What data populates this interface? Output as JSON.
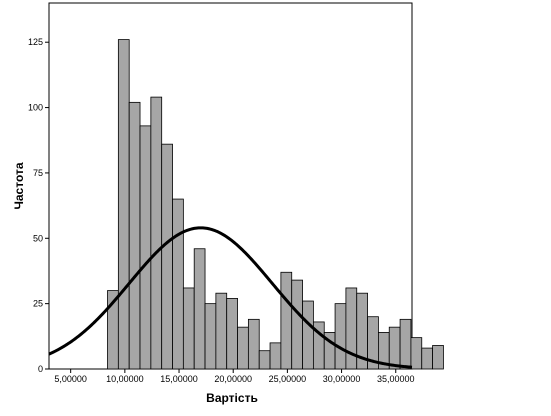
{
  "chart_data": {
    "type": "bar",
    "subtype": "histogram_with_normal_curve",
    "xlabel": "Вартість",
    "ylabel": "Частота",
    "xlim": [
      3000,
      36500
    ],
    "ylim": [
      0,
      140
    ],
    "x_ticks": [
      5000,
      10000,
      15000,
      20000,
      25000,
      30000,
      35000
    ],
    "x_tick_labels": [
      "5,00000",
      "10,00000",
      "15,00000",
      "20,00000",
      "25,00000",
      "30,00000",
      "35,00000"
    ],
    "y_ticks": [
      0,
      25,
      50,
      75,
      100,
      125
    ],
    "y_tick_labels": [
      "0",
      "25",
      "50",
      "75",
      "100",
      "125"
    ],
    "bin_start": 8400,
    "bin_width": 1000,
    "values": [
      30,
      126,
      102,
      93,
      104,
      86,
      65,
      31,
      46,
      25,
      29,
      27,
      16,
      19,
      7,
      10,
      37,
      34,
      26,
      18,
      14,
      25,
      31,
      29,
      20,
      14,
      16,
      19,
      12,
      8,
      9
    ],
    "normal_curve": {
      "mean": 17000,
      "sd": 6600,
      "peak": 54
    },
    "grid": false,
    "legend": "none",
    "colors": {
      "bar_fill": "#a6a6a6",
      "bar_stroke": "#000000",
      "curve": "#000000",
      "frame": "#000000",
      "background": "#ffffff"
    }
  }
}
